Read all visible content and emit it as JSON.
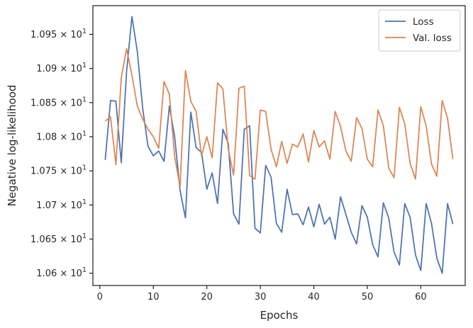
{
  "chart_data": {
    "type": "line",
    "xlabel": "Epochs",
    "ylabel": "Negative log-likelihood",
    "xlim": [
      -1.3,
      68.3
    ],
    "ylim": [
      10.582,
      10.992
    ],
    "x_ticks": [
      0,
      10,
      20,
      30,
      40,
      50,
      60
    ],
    "y_ticks": [
      {
        "value": 10.6,
        "mantissa": "1.06",
        "exp": "1"
      },
      {
        "value": 10.65,
        "mantissa": "1.065",
        "exp": "1"
      },
      {
        "value": 10.7,
        "mantissa": "1.07",
        "exp": "1"
      },
      {
        "value": 10.75,
        "mantissa": "1.075",
        "exp": "1"
      },
      {
        "value": 10.8,
        "mantissa": "1.08",
        "exp": "1"
      },
      {
        "value": 10.85,
        "mantissa": "1.085",
        "exp": "1"
      },
      {
        "value": 10.9,
        "mantissa": "1.09",
        "exp": "1"
      },
      {
        "value": 10.95,
        "mantissa": "1.095",
        "exp": "1"
      }
    ],
    "legend_position": "top-right",
    "grid": false,
    "x": [
      1,
      2,
      3,
      4,
      5,
      6,
      7,
      8,
      9,
      10,
      11,
      12,
      13,
      14,
      15,
      16,
      17,
      18,
      19,
      20,
      21,
      22,
      23,
      24,
      25,
      26,
      27,
      28,
      29,
      30,
      31,
      32,
      33,
      34,
      35,
      36,
      37,
      38,
      39,
      40,
      41,
      42,
      43,
      44,
      45,
      46,
      47,
      48,
      49,
      50,
      51,
      52,
      53,
      54,
      55,
      56,
      57,
      58,
      59,
      60,
      61,
      62,
      63,
      64,
      65,
      66
    ],
    "series": [
      {
        "name": "Loss",
        "color": "#4c72b0",
        "values": [
          10.766,
          10.853,
          10.852,
          10.762,
          10.896,
          10.976,
          10.925,
          10.842,
          10.786,
          10.772,
          10.779,
          10.764,
          10.845,
          10.799,
          10.721,
          10.681,
          10.836,
          10.784,
          10.777,
          10.723,
          10.747,
          10.702,
          10.811,
          10.79,
          10.687,
          10.672,
          10.811,
          10.816,
          10.666,
          10.659,
          10.758,
          10.741,
          10.673,
          10.66,
          10.723,
          10.686,
          10.687,
          10.671,
          10.697,
          10.668,
          10.701,
          10.672,
          10.682,
          10.65,
          10.712,
          10.686,
          10.66,
          10.643,
          10.699,
          10.682,
          10.642,
          10.624,
          10.703,
          10.681,
          10.631,
          10.612,
          10.702,
          10.682,
          10.627,
          10.604,
          10.702,
          10.673,
          10.622,
          10.6,
          10.702,
          10.672
        ]
      },
      {
        "name": "Val. loss",
        "color": "#dd8452",
        "values": [
          10.823,
          10.829,
          10.759,
          10.886,
          10.929,
          10.89,
          10.845,
          10.826,
          10.811,
          10.8,
          10.783,
          10.881,
          10.862,
          10.77,
          10.727,
          10.897,
          10.852,
          10.837,
          10.772,
          10.8,
          10.769,
          10.879,
          10.87,
          10.782,
          10.744,
          10.871,
          10.874,
          10.743,
          10.738,
          10.839,
          10.837,
          10.782,
          10.756,
          10.793,
          10.761,
          10.789,
          10.785,
          10.804,
          10.763,
          10.809,
          10.785,
          10.794,
          10.767,
          10.837,
          10.815,
          10.779,
          10.764,
          10.828,
          10.812,
          10.767,
          10.756,
          10.839,
          10.816,
          10.754,
          10.74,
          10.843,
          10.819,
          10.761,
          10.738,
          10.844,
          10.816,
          10.76,
          10.742,
          10.853,
          10.827,
          10.767
        ]
      }
    ]
  }
}
